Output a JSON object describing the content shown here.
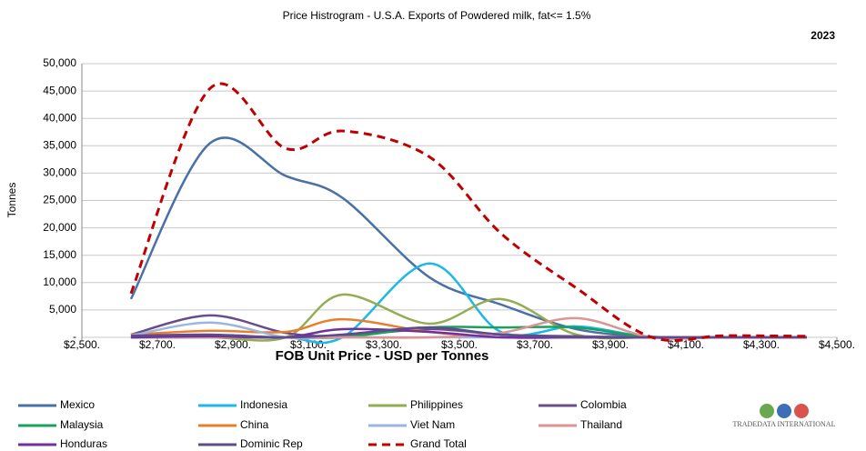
{
  "chart_data": {
    "type": "line",
    "title": "Price Histrogram - U.S.A. Exports of Powdered milk, fat<= 1.5%",
    "subtitle": "2023",
    "x_label": "FOB Unit Price - USD per Tonnes",
    "y_label": "Tonnes",
    "logo": "TRADEDATA INTERNATIONAL",
    "smooth": true,
    "grid": true,
    "x": [
      2630,
      2840,
      3040,
      3190,
      3420,
      3610,
      3810,
      4010,
      4200,
      4420
    ],
    "xlim": [
      2500,
      4500
    ],
    "xticks": [
      {
        "value": 2500,
        "label": "$2,500."
      },
      {
        "value": 2700,
        "label": "$2,700."
      },
      {
        "value": 2900,
        "label": "$2,900."
      },
      {
        "value": 3100,
        "label": "$3,100."
      },
      {
        "value": 3300,
        "label": "$3,300."
      },
      {
        "value": 3500,
        "label": "$3,500."
      },
      {
        "value": 3700,
        "label": "$3,700."
      },
      {
        "value": 3900,
        "label": "$3,900."
      },
      {
        "value": 4100,
        "label": "$4,100."
      },
      {
        "value": 4300,
        "label": "$4,300."
      },
      {
        "value": 4500,
        "label": "$4,500."
      }
    ],
    "ylim": [
      0,
      50000
    ],
    "yticks": [
      {
        "value": 0,
        "label": "-"
      },
      {
        "value": 5000,
        "label": "5,000"
      },
      {
        "value": 10000,
        "label": "10,000"
      },
      {
        "value": 15000,
        "label": "15,000"
      },
      {
        "value": 20000,
        "label": "20,000"
      },
      {
        "value": 25000,
        "label": "25,000"
      },
      {
        "value": 30000,
        "label": "30,000"
      },
      {
        "value": 35000,
        "label": "35,000"
      },
      {
        "value": 40000,
        "label": "40,000"
      },
      {
        "value": 45000,
        "label": "45,000"
      },
      {
        "value": 50000,
        "label": "50,000"
      }
    ],
    "series": [
      {
        "name": "Mexico",
        "color": "#4a70a8",
        "values": [
          7000,
          35500,
          29500,
          25500,
          11000,
          6000,
          1500,
          100,
          0,
          0
        ]
      },
      {
        "name": "Indonesia",
        "color": "#1cb8e8",
        "values": [
          0,
          0,
          0,
          0,
          13500,
          1000,
          2000,
          0,
          0,
          0
        ]
      },
      {
        "name": "Philippines",
        "color": "#93ad55",
        "values": [
          0,
          0,
          0,
          7800,
          2500,
          7000,
          500,
          0,
          0,
          0
        ]
      },
      {
        "name": "Colombia",
        "color": "#6b4c8a",
        "values": [
          500,
          4000,
          800,
          300,
          1500,
          500,
          200,
          0,
          0,
          0
        ]
      },
      {
        "name": "Malaysia",
        "color": "#1aa05a",
        "values": [
          0,
          0,
          0,
          0,
          1800,
          1800,
          1800,
          0,
          0,
          0
        ]
      },
      {
        "name": "China",
        "color": "#e6802e",
        "values": [
          500,
          1200,
          1000,
          3300,
          1000,
          0,
          0,
          0,
          0,
          0
        ]
      },
      {
        "name": "Viet Nam",
        "color": "#9ab6df",
        "values": [
          300,
          2700,
          0,
          0,
          0,
          0,
          0,
          0,
          0,
          0
        ]
      },
      {
        "name": "Thailand",
        "color": "#d99694",
        "values": [
          0,
          0,
          0,
          0,
          0,
          800,
          3500,
          0,
          0,
          0
        ]
      },
      {
        "name": "Honduras",
        "color": "#7030a0",
        "values": [
          0,
          200,
          0,
          1500,
          1000,
          0,
          0,
          0,
          0,
          0
        ]
      },
      {
        "name": "Dominic Rep",
        "color": "#5f4b8b",
        "values": [
          300,
          500,
          0,
          500,
          1800,
          500,
          0,
          0,
          0,
          0
        ]
      },
      {
        "name": "Grand Total",
        "color": "#c00000",
        "dashed": true,
        "values": [
          8000,
          45500,
          34500,
          37700,
          33000,
          19000,
          9000,
          0,
          300,
          200
        ]
      }
    ]
  }
}
